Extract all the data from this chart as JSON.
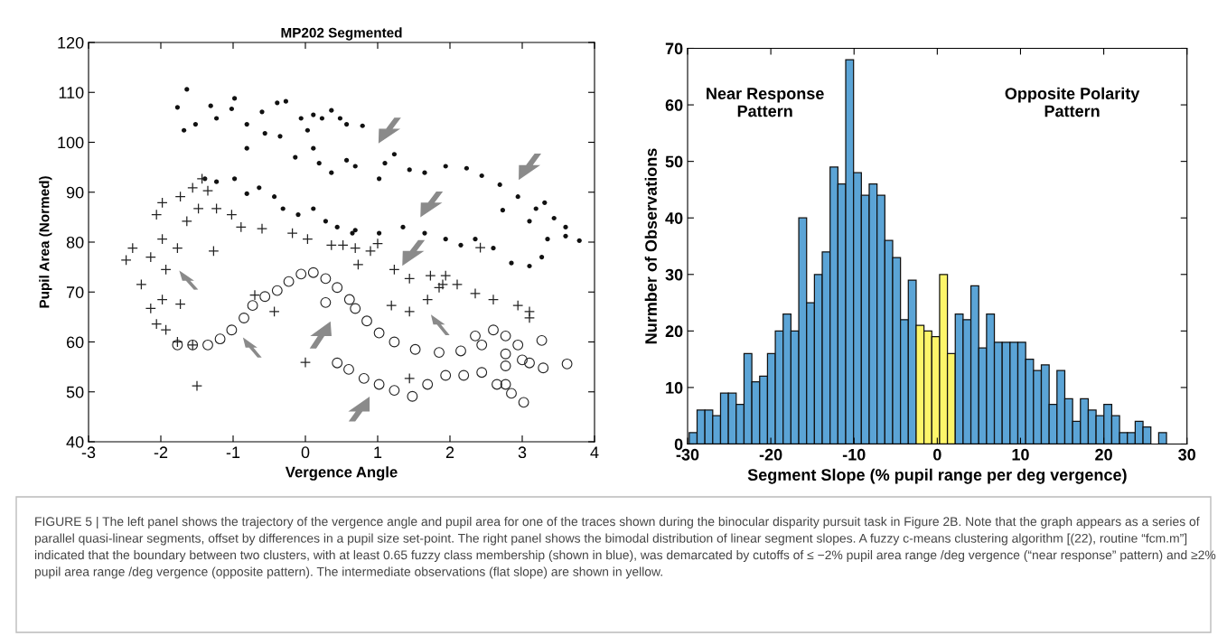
{
  "chart_data": [
    {
      "type": "scatter",
      "title": "MP202 Segmented",
      "xlabel": "Vergence Angle",
      "ylabel": "Pupil Area (Normed)",
      "xlim": [
        -3,
        4
      ],
      "xticks": [
        -3,
        -2,
        -1,
        0,
        1,
        2,
        3,
        4
      ],
      "ylim": [
        40,
        120
      ],
      "yticks": [
        40,
        50,
        60,
        70,
        80,
        90,
        100,
        110,
        120
      ],
      "series": [
        {
          "type": "scatter",
          "marker": "circle",
          "color": "#111111",
          "x": [
            -1.77,
            -1.64,
            -1.52,
            -1.68,
            -1.31,
            -1.23,
            -1.02,
            -0.98,
            -0.81,
            -0.81,
            -0.6,
            -0.56,
            -0.39,
            -0.35,
            -0.27,
            -0.14,
            -0.06,
            0.03,
            0.11,
            0.23,
            0.36,
            0.48,
            0.57,
            0.11,
            0.19,
            0.36,
            0.57,
            0.79,
            0.69,
            1.02,
            1.1,
            1.23,
            1.44,
            1.65,
            1.94,
            2.23,
            2.44,
            2.69,
            2.94,
            3.19,
            3.31,
            3.44,
            3.6,
            3.79,
            3.1,
            2.73,
            -1.39,
            -1.23,
            -0.98,
            -0.81,
            -0.64,
            -0.43,
            -0.31,
            -0.1,
            0.11,
            0.28,
            0.44,
            0.65,
            0.69,
            1.02,
            1.35,
            1.65,
            1.94,
            2.15,
            2.35,
            2.6,
            2.85,
            3.1,
            3.27,
            3.35,
            3.6
          ],
          "values": [
            107.0,
            110.6,
            103.6,
            102.4,
            107.3,
            104.8,
            106.7,
            108.8,
            103.6,
            98.8,
            106.1,
            101.8,
            107.9,
            101.2,
            108.2,
            97.0,
            104.8,
            102.4,
            105.5,
            104.8,
            106.4,
            104.8,
            103.6,
            98.8,
            95.8,
            93.9,
            96.4,
            103.3,
            95.2,
            92.7,
            95.8,
            97.6,
            94.5,
            93.9,
            95.2,
            94.8,
            93.3,
            91.5,
            89.1,
            86.7,
            87.9,
            84.8,
            83.0,
            80.3,
            84.2,
            86.4,
            92.7,
            92.1,
            92.7,
            89.7,
            90.9,
            89.1,
            86.7,
            85.5,
            86.7,
            84.2,
            83.0,
            81.8,
            82.4,
            81.8,
            83.0,
            81.8,
            80.6,
            79.4,
            80.6,
            78.8,
            75.8,
            75.2,
            77.0,
            80.6,
            81.2
          ]
        },
        {
          "type": "scatter",
          "marker": "cross",
          "color": "#222222",
          "x": [
            -2.48,
            -2.39,
            -2.14,
            -2.27,
            -2.14,
            -2.06,
            -1.98,
            -1.93,
            -1.98,
            -2.06,
            -1.98,
            -1.73,
            -1.56,
            -1.43,
            -1.35,
            -1.48,
            -1.64,
            -1.23,
            -1.02,
            -0.89,
            -0.6,
            -0.18,
            0.03,
            0.36,
            0.69,
            0.52,
            0.9,
            1.23,
            1.44,
            1.73,
            1.9,
            2.1,
            2.35,
            2.6,
            2.94,
            3.1,
            3.1,
            1.19,
            1.44,
            1.69,
            1.85,
            1.94,
            -1.93,
            -1.77,
            -1.56,
            -1.77,
            -1.27,
            -1.73,
            -1.5,
            0.0,
            -0.43,
            -0.7,
            1.0,
            0.73,
            2.42,
            1.44
          ],
          "values": [
            76.4,
            78.8,
            77.0,
            71.5,
            66.7,
            63.6,
            68.5,
            74.5,
            80.6,
            85.5,
            87.9,
            89.1,
            90.9,
            92.7,
            90.3,
            86.7,
            84.2,
            86.7,
            85.5,
            83.0,
            82.7,
            81.8,
            80.6,
            79.4,
            78.8,
            79.4,
            78.2,
            74.5,
            72.7,
            73.3,
            71.5,
            71.5,
            69.7,
            68.5,
            67.3,
            66.1,
            64.8,
            67.3,
            66.1,
            68.5,
            70.9,
            73.3,
            62.4,
            60.0,
            59.4,
            78.8,
            78.2,
            67.6,
            51.2,
            55.9,
            66.1,
            69.4,
            79.7,
            75.5,
            78.9,
            52.7
          ]
        },
        {
          "type": "scatter",
          "marker": "circle",
          "color": "#222222",
          "x": [
            -1.77,
            -1.56,
            -1.35,
            -1.18,
            -1.02,
            -0.85,
            -0.73,
            -0.56,
            -0.39,
            -0.23,
            -0.06,
            0.11,
            0.28,
            0.44,
            0.61,
            0.69,
            0.28,
            0.85,
            1.02,
            1.23,
            1.52,
            1.85,
            2.15,
            2.44,
            2.6,
            2.77,
            2.94,
            3.0,
            2.35,
            3.27,
            3.62,
            3.29,
            3.1,
            0.44,
            0.6,
            0.81,
            1.02,
            1.23,
            1.48,
            1.69,
            1.94,
            2.19,
            2.44,
            2.65,
            2.77,
            2.85,
            3.02,
            2.77,
            2.77
          ],
          "values": [
            59.4,
            59.4,
            59.4,
            60.6,
            62.4,
            64.8,
            67.3,
            69.1,
            70.3,
            72.1,
            73.6,
            73.9,
            72.7,
            70.9,
            68.5,
            66.7,
            67.9,
            64.2,
            61.8,
            60.0,
            58.5,
            57.9,
            58.2,
            59.4,
            62.4,
            61.2,
            59.4,
            56.4,
            61.2,
            60.3,
            55.6,
            54.8,
            55.8,
            55.8,
            54.5,
            52.7,
            51.5,
            50.3,
            49.1,
            51.5,
            53.3,
            53.3,
            53.9,
            51.5,
            51.5,
            49.7,
            47.9,
            55.2,
            57.6
          ]
        }
      ],
      "annotations": [
        "FIGURE 5 | The left panel shows the trajectory of the vergence angle and pupil area for one of the traces shown during the binocular disparity pursuit task in Figure 2B. Note that the graph appears as a series of parallel quasi-linear segments, offset by differences in a pupil size set-point. The right panel shows the bimodal distribution of linear segment slopes. A fuzzy c-means clustering algorithm [(22), routine “fcm.m”] indicated that the boundary between two clusters, with at least 0.65 fuzzy class membership (shown in blue), was demarcated by cutoffs of ≤ −2% pupil area range /deg vergence (“near response” pattern) and ≥2% pupil area range /deg vergence (opposite pattern). The intermediate observations (flat slope) are shown in yellow."
      ]
    },
    {
      "type": "histogram",
      "xlabel": "Segment Slope (% pupil range per deg vergence)",
      "ylabel": "Nurmber of Observations",
      "xlim": [
        -30,
        30
      ],
      "xticks": [
        -30,
        -20,
        -10,
        0,
        10,
        20,
        30
      ],
      "ylim": [
        0,
        70
      ],
      "yticks": [
        0,
        10,
        20,
        30,
        40,
        50,
        60,
        70
      ],
      "bins": [
        -29.8,
        -28.86,
        -27.92,
        -26.98,
        -26.04,
        -25.1,
        -24.16,
        -23.22,
        -22.28,
        -21.34,
        -20.4,
        -19.46,
        -18.52,
        -17.58,
        -16.64,
        -15.7,
        -14.76,
        -13.82,
        -12.88,
        -11.94,
        -11.0,
        -10.06,
        -9.12,
        -8.18,
        -7.24,
        -6.3,
        -5.36,
        -4.42,
        -3.48,
        -2.54,
        -1.6,
        -0.66,
        0.28,
        1.22,
        2.16,
        3.1,
        4.04,
        4.98,
        5.92,
        6.86,
        7.8,
        8.74,
        9.68,
        10.62,
        11.56,
        12.5,
        13.44,
        14.38,
        15.32,
        16.26,
        17.2,
        18.14,
        19.08,
        20.02,
        20.96,
        21.9,
        22.84,
        23.78,
        24.72,
        25.66,
        26.6,
        27.54
      ],
      "values": [
        2,
        6,
        6,
        5,
        9,
        9,
        7,
        16,
        11,
        12,
        16,
        20,
        23,
        20,
        40,
        25,
        30,
        34,
        49,
        46,
        68,
        48,
        44,
        46,
        44,
        36,
        33,
        22,
        29,
        21,
        20,
        19,
        30,
        16,
        23,
        22,
        28,
        17,
        23,
        18,
        18,
        18,
        18,
        15,
        13,
        14,
        7,
        13,
        8,
        4,
        8,
        6,
        5,
        7,
        5,
        2,
        2,
        4,
        3,
        0,
        2
      ],
      "colors": [
        "#5ba4d6",
        "#5ba4d6",
        "#5ba4d6",
        "#5ba4d6",
        "#5ba4d6",
        "#5ba4d6",
        "#5ba4d6",
        "#5ba4d6",
        "#5ba4d6",
        "#5ba4d6",
        "#5ba4d6",
        "#5ba4d6",
        "#5ba4d6",
        "#5ba4d6",
        "#5ba4d6",
        "#5ba4d6",
        "#5ba4d6",
        "#5ba4d6",
        "#5ba4d6",
        "#5ba4d6",
        "#5ba4d6",
        "#5ba4d6",
        "#5ba4d6",
        "#5ba4d6",
        "#5ba4d6",
        "#5ba4d6",
        "#5ba4d6",
        "#5ba4d6",
        "#5ba4d6",
        "#fdf56a",
        "#fdf56a",
        "#fdf56a",
        "#fdf56a",
        "#fdf56a",
        "#5ba4d6",
        "#5ba4d6",
        "#5ba4d6",
        "#5ba4d6",
        "#5ba4d6",
        "#5ba4d6",
        "#5ba4d6",
        "#5ba4d6",
        "#5ba4d6",
        "#5ba4d6",
        "#5ba4d6",
        "#5ba4d6",
        "#5ba4d6",
        "#5ba4d6",
        "#5ba4d6",
        "#5ba4d6",
        "#5ba4d6",
        "#5ba4d6",
        "#5ba4d6",
        "#5ba4d6",
        "#5ba4d6",
        "#5ba4d6",
        "#5ba4d6",
        "#5ba4d6",
        "#5ba4d6",
        "#5ba4d6",
        "#5ba4d6"
      ],
      "annotations": [
        "Near Response\nPattern",
        "Opposite Polarity\nPattern"
      ]
    }
  ]
}
